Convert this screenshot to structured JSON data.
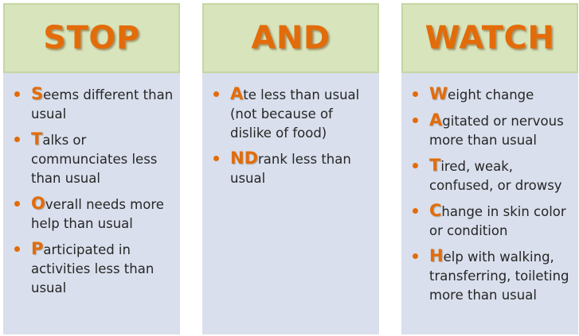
{
  "colors": {
    "accent": "#e36c0a",
    "header_bg": "#d8e4bc",
    "body_bg": "#d9dfec",
    "text": "#262626"
  },
  "columns": [
    {
      "title": "STOP",
      "items": [
        {
          "initial": "S",
          "rest": "eems different than usual"
        },
        {
          "initial": "T",
          "rest": "alks or communciates less than usual"
        },
        {
          "initial": "O",
          "rest": "verall needs more help than usual"
        },
        {
          "initial": "P",
          "rest": "articipated in activities less than usual"
        }
      ]
    },
    {
      "title": "AND",
      "items": [
        {
          "initial": "A",
          "rest": "te less than usual (not because of dislike of food)"
        },
        {
          "initial": "ND",
          "rest": "rank less than usual"
        }
      ]
    },
    {
      "title": "WATCH",
      "items": [
        {
          "initial": "W",
          "rest": "eight change"
        },
        {
          "initial": "A",
          "rest": "gitated or nervous more than usual"
        },
        {
          "initial": "T",
          "rest": "ired, weak, confused, or drowsy"
        },
        {
          "initial": "C",
          "rest": "hange in skin color or condition"
        },
        {
          "initial": "H",
          "rest": "elp with walking, transferring, toileting more than usual"
        }
      ]
    }
  ]
}
